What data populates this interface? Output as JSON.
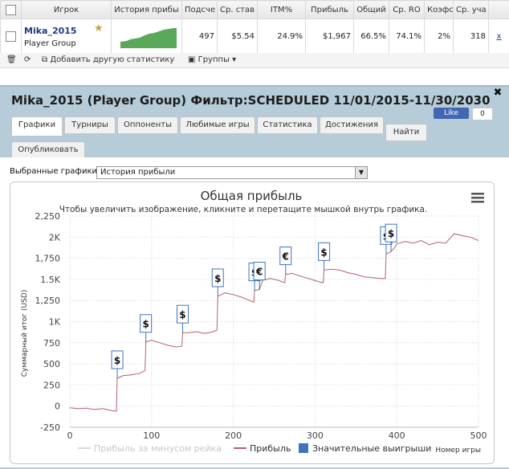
{
  "grid": {
    "headers": [
      "Игрок",
      "История прибы",
      "Подсче",
      "Ср. став",
      "ITM%",
      "Прибыль",
      "Общий",
      "Ср. RO",
      "Коэфс",
      "Ср. уча"
    ],
    "row": {
      "player": "Mika_2015",
      "group": "Player Group",
      "values": [
        "497",
        "$5.54",
        "24.9%",
        "$1,967",
        "66.5%",
        "74.1%",
        "2%",
        "318"
      ],
      "remove_label": "x"
    }
  },
  "toolbar": {
    "add_stats_label": "Добавить другую статистику",
    "groups_label": "Группы"
  },
  "panel": {
    "title": "Mika_2015 (Player Group) Фильтр:SCHEDULED 11/01/2015-11/30/2030",
    "like_label": "Like",
    "like_count": "0",
    "tabs": [
      "Графики",
      "Турниры",
      "Оппоненты",
      "Любимые игры",
      "Статистика",
      "Достижения"
    ],
    "find_label": "Найти",
    "publish_label": "Опубликовать",
    "selected_label": "Выбранные графики:",
    "selected_value": "История прибыли"
  },
  "chart_data": {
    "type": "line",
    "title": "Общая прибыль",
    "subtitle": "Чтобы увеличить изображение, кликните и перетащите мышкой внутрь графика.",
    "xlabel": "Номер игры",
    "ylabel": "Суммарный итог (USD)",
    "xlim": [
      0,
      500
    ],
    "ylim": [
      -250,
      2250
    ],
    "x_ticks": [
      "0",
      "100",
      "200",
      "300",
      "400",
      "500"
    ],
    "y_ticks": [
      "-250",
      "0",
      "250",
      "500",
      "750",
      "1K",
      "1,250",
      "1.5K",
      "1,750",
      "2K",
      "2,250"
    ],
    "series": [
      {
        "name": "Прибыль за минусом рейка",
        "color": "#d8d8d8",
        "values": []
      },
      {
        "name": "Прибыль",
        "color": "#b4606a",
        "values": [
          [
            0,
            -20
          ],
          [
            10,
            -30
          ],
          [
            20,
            -25
          ],
          [
            30,
            -40
          ],
          [
            40,
            -30
          ],
          [
            50,
            -50
          ],
          [
            57,
            -60
          ],
          [
            58,
            330
          ],
          [
            65,
            360
          ],
          [
            75,
            370
          ],
          [
            85,
            385
          ],
          [
            92,
            420
          ],
          [
            93,
            760
          ],
          [
            100,
            780
          ],
          [
            110,
            750
          ],
          [
            120,
            720
          ],
          [
            130,
            700
          ],
          [
            137,
            710
          ],
          [
            138,
            870
          ],
          [
            145,
            870
          ],
          [
            155,
            880
          ],
          [
            165,
            860
          ],
          [
            175,
            880
          ],
          [
            180,
            900
          ],
          [
            181,
            1300
          ],
          [
            190,
            1340
          ],
          [
            200,
            1320
          ],
          [
            210,
            1290
          ],
          [
            220,
            1250
          ],
          [
            225,
            1230
          ],
          [
            226,
            1370
          ],
          [
            232,
            1380
          ],
          [
            236,
            1490
          ],
          [
            245,
            1510
          ],
          [
            255,
            1490
          ],
          [
            263,
            1460
          ],
          [
            264,
            1560
          ],
          [
            272,
            1570
          ],
          [
            282,
            1540
          ],
          [
            292,
            1510
          ],
          [
            302,
            1480
          ],
          [
            310,
            1460
          ],
          [
            311,
            1610
          ],
          [
            320,
            1620
          ],
          [
            330,
            1610
          ],
          [
            340,
            1580
          ],
          [
            350,
            1560
          ],
          [
            360,
            1530
          ],
          [
            370,
            1520
          ],
          [
            380,
            1510
          ],
          [
            386,
            1510
          ],
          [
            387,
            1800
          ],
          [
            393,
            1830
          ],
          [
            397,
            1870
          ],
          [
            400,
            1920
          ],
          [
            410,
            1950
          ],
          [
            420,
            1930
          ],
          [
            430,
            1960
          ],
          [
            440,
            1910
          ],
          [
            450,
            1940
          ],
          [
            460,
            1930
          ],
          [
            470,
            2040
          ],
          [
            480,
            2020
          ],
          [
            490,
            2000
          ],
          [
            500,
            1960
          ]
        ]
      },
      {
        "name": "Значительные выигрыши",
        "color": "#3d74c2",
        "values": []
      }
    ],
    "legend_position": "bottom",
    "grid": true,
    "markers": [
      {
        "x": 58,
        "symbol": "$"
      },
      {
        "x": 93,
        "symbol": "$"
      },
      {
        "x": 138,
        "symbol": "$"
      },
      {
        "x": 181,
        "symbol": "$"
      },
      {
        "x": 226,
        "symbol": "$"
      },
      {
        "x": 232,
        "symbol": "€"
      },
      {
        "x": 264,
        "symbol": "€"
      },
      {
        "x": 311,
        "symbol": "$"
      },
      {
        "x": 387,
        "symbol": "$"
      },
      {
        "x": 393,
        "symbol": "$"
      }
    ]
  },
  "colors": {
    "panel_bg": "#b6ccd8",
    "accent": "#1f3b87",
    "line": "#b4606a",
    "sparkline": "#5aa85a"
  }
}
